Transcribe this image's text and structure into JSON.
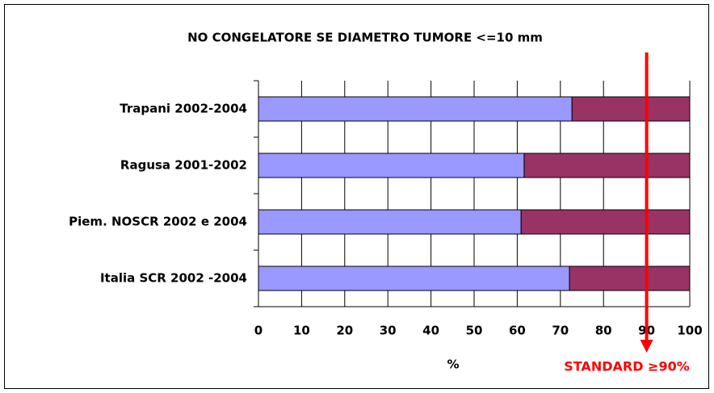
{
  "chart_data": {
    "type": "stacked-bar-horizontal",
    "title": "NO CONGELATORE SE DIAMETRO TUMORE <=10 mm",
    "categories": [
      "Trapani 2002-2004",
      "Ragusa 2001-2002",
      "Piem. NOSCR 2002 e 2004",
      "Italia SCR 2002 -2004"
    ],
    "series": [
      {
        "color": "#9999ff",
        "values": [
          72.7,
          61.6,
          60.9,
          72.1
        ]
      },
      {
        "color": "#993366",
        "values": [
          27.3,
          38.4,
          39.1,
          27.9
        ]
      }
    ],
    "xlabel": "%",
    "xlim": [
      0,
      100
    ],
    "xticks": [
      0,
      10,
      20,
      30,
      40,
      50,
      60,
      70,
      80,
      90,
      100
    ],
    "grid": true,
    "annotation": {
      "text": "STANDARD ≥90%",
      "x": 90,
      "color": "#ff0000"
    }
  }
}
